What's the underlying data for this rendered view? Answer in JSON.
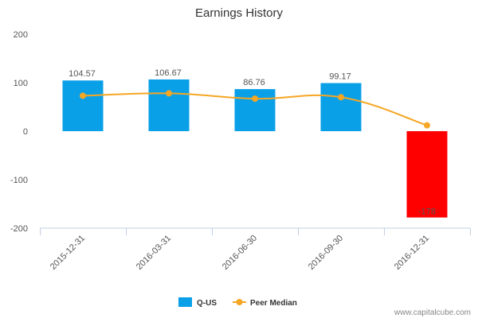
{
  "chart_data": {
    "type": "bar",
    "title": "Earnings History",
    "xlabel": "",
    "ylabel": "",
    "ylim": [
      -200,
      200
    ],
    "yticks": [
      "200",
      "100",
      "0",
      "-100",
      "-200"
    ],
    "categories": [
      "2015-12-31",
      "2016-03-31",
      "2016-06-30",
      "2016-09-30",
      "2016-12-31"
    ],
    "series": [
      {
        "name": "Q-US",
        "type": "bar",
        "values": [
          104.57,
          106.67,
          86.76,
          99.17,
          -178
        ],
        "labels": [
          "104.57",
          "106.67",
          "86.76",
          "99.17",
          "-178"
        ],
        "color": "#0aa0e8",
        "negative_color": "#ff0000"
      },
      {
        "name": "Peer Median",
        "type": "line",
        "values": [
          73,
          78,
          67,
          70,
          12
        ],
        "color": "#f5a623"
      }
    ],
    "legend_position": "bottom-center"
  },
  "credit": "www.capitalcube.com"
}
